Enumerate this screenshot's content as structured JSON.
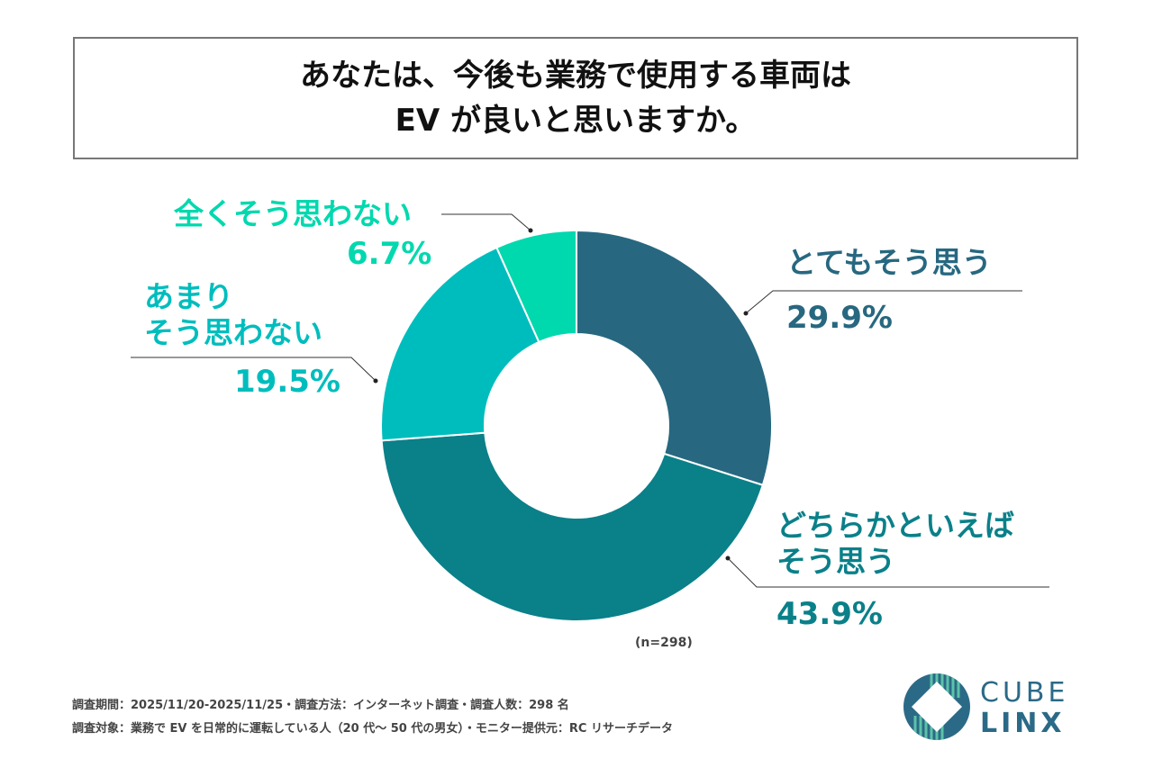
{
  "title": {
    "line1": "あなたは、今後も業務で使用する車両は",
    "line2": "EV が良いと思いますか。"
  },
  "chart_data": {
    "type": "pie",
    "donut": true,
    "categories": [
      "とてもそう思う",
      "どちらかといえばそう思う",
      "あまりそう思わない",
      "全くそう思わない"
    ],
    "values": [
      29.9,
      43.9,
      19.5,
      6.7
    ],
    "unit": "%",
    "colors": [
      "#276880",
      "#0a8089",
      "#00bdbd",
      "#00d8ae"
    ],
    "labels": [
      {
        "text": "とてもそう思う",
        "pct": "29.9%"
      },
      {
        "text1": "どちらかといえば",
        "text2": "そう思う",
        "pct": "43.9%"
      },
      {
        "text1": "あまり",
        "text2": "そう思わない",
        "pct": "19.5%"
      },
      {
        "text": "全くそう思わない",
        "pct": "6.7%"
      }
    ],
    "note": "(n=298)"
  },
  "footer": {
    "line1": "調査期間：2025/11/20-2025/11/25・調査方法：インターネット調査・調査人数：298 名",
    "line2": "調査対象：業務で EV を日常的に運転している人（20 代～ 50 代の男女）・モニター提供元：RC リサーチデータ"
  },
  "logo": {
    "line1": "CUBE",
    "line2": "LINX"
  }
}
